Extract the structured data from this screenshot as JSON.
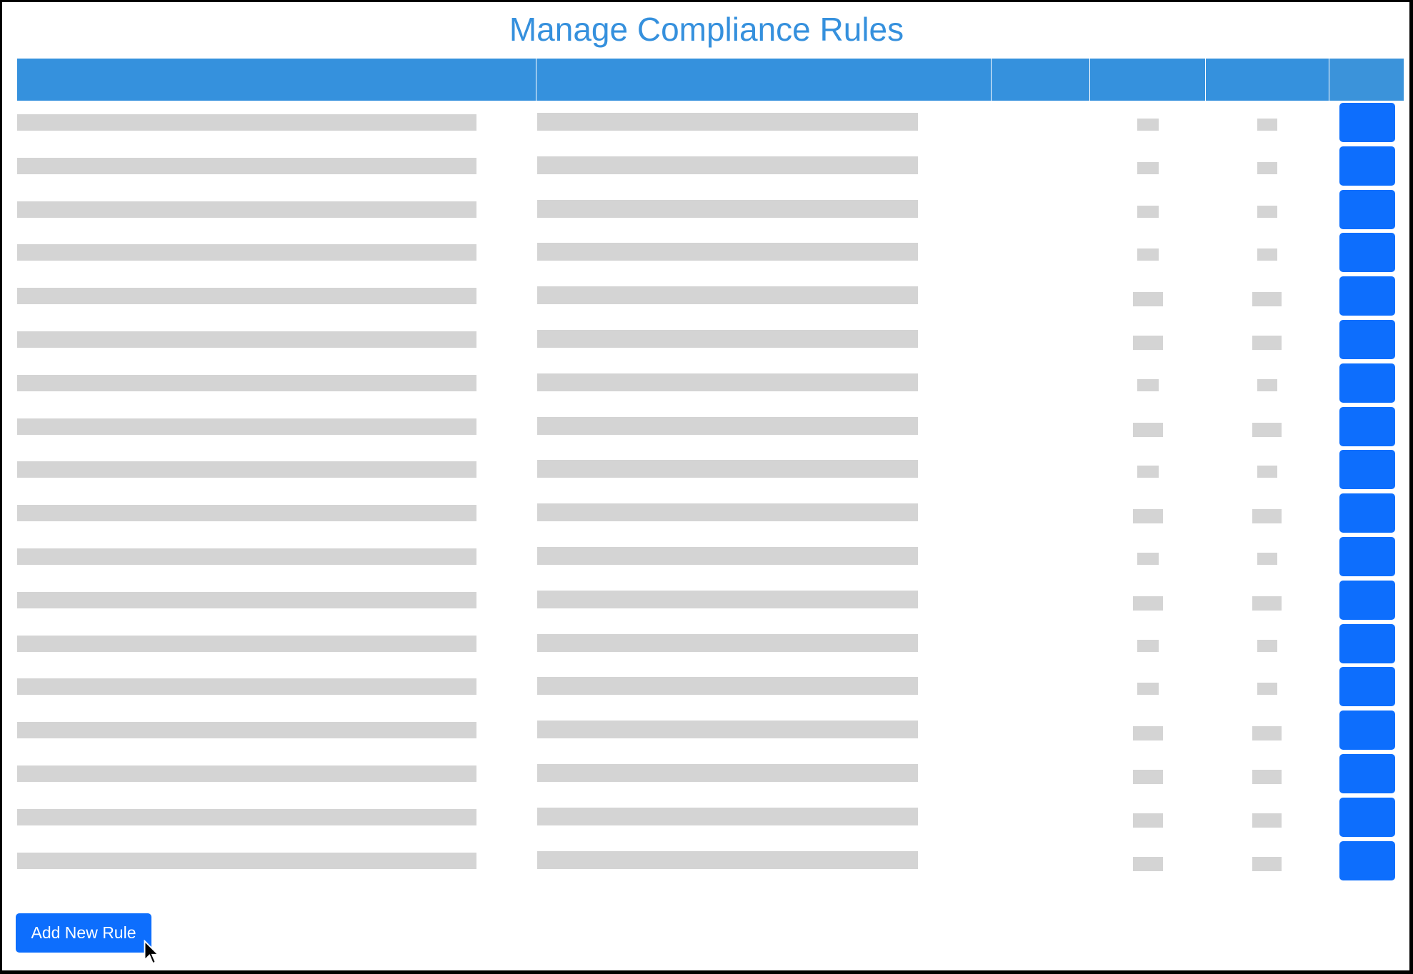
{
  "page": {
    "title": "Manage Compliance Rules"
  },
  "table": {
    "column_count": 6
  },
  "actions": {
    "add_label": "Add New Rule"
  },
  "colors": {
    "header": "#3591dd",
    "title": "#3590dd",
    "button": "#0d6efd",
    "placeholder": "#d4d4d4"
  }
}
